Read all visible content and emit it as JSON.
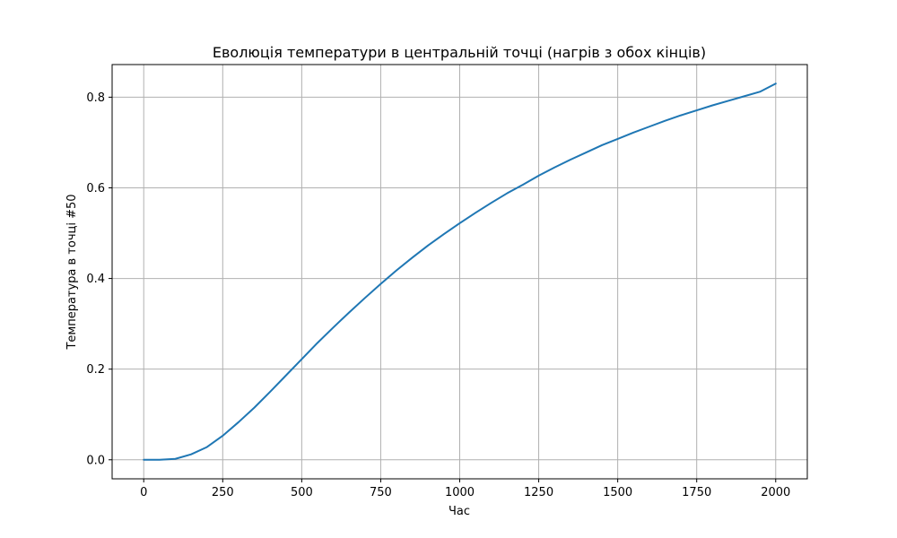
{
  "chart_data": {
    "type": "line",
    "title": "Еволюція температури в центральній точці (нагрів з обох кінців)",
    "xlabel": "Час",
    "ylabel": "Температура в точці #50",
    "xlim": [
      -100,
      2100
    ],
    "ylim": [
      -0.042,
      0.872
    ],
    "xticks": [
      0,
      250,
      500,
      750,
      1000,
      1250,
      1500,
      1750,
      2000
    ],
    "xtick_labels": [
      "0",
      "250",
      "500",
      "750",
      "1000",
      "1250",
      "1500",
      "1750",
      "2000"
    ],
    "yticks": [
      0.0,
      0.2,
      0.4,
      0.6,
      0.8
    ],
    "ytick_labels": [
      "0.0",
      "0.2",
      "0.4",
      "0.6",
      "0.8"
    ],
    "grid": true,
    "series": [
      {
        "color": "#1f77b4",
        "x": [
          0,
          50,
          100,
          150,
          200,
          250,
          300,
          350,
          400,
          450,
          500,
          550,
          600,
          650,
          700,
          750,
          800,
          850,
          900,
          950,
          1000,
          1050,
          1100,
          1150,
          1200,
          1250,
          1300,
          1350,
          1400,
          1450,
          1500,
          1550,
          1600,
          1650,
          1700,
          1750,
          1800,
          1850,
          1900,
          1950,
          2000
        ],
        "y": [
          0.0,
          0.0,
          0.002,
          0.012,
          0.028,
          0.053,
          0.083,
          0.115,
          0.15,
          0.186,
          0.222,
          0.258,
          0.292,
          0.325,
          0.357,
          0.388,
          0.418,
          0.446,
          0.473,
          0.498,
          0.522,
          0.545,
          0.567,
          0.588,
          0.607,
          0.627,
          0.645,
          0.662,
          0.678,
          0.694,
          0.708,
          0.722,
          0.735,
          0.748,
          0.76,
          0.771,
          0.782,
          0.792,
          0.802,
          0.812,
          0.83
        ]
      }
    ]
  }
}
